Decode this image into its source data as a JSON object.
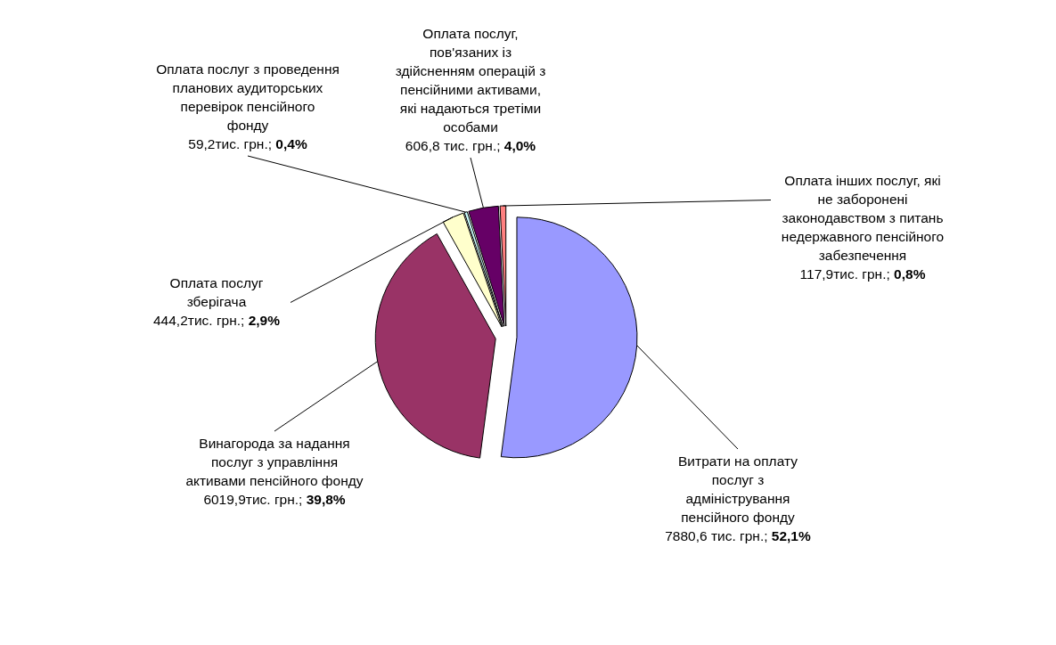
{
  "chart_data": {
    "type": "pie",
    "categories": [
      "Витрати на оплату послуг з адміністрування пенсійного фонду",
      "Винагорода за надання послуг з управління активами пенсійного фонду",
      "Оплата послуг зберігача",
      "Оплата послуг з проведення планових аудиторських перевірок пенсійного фонду",
      "Оплата послуг, пов'язаних із здійсненням операцій з пенсійними активами, які надаються третіми особами",
      "Оплата інших послуг, які не заборонені законодавством з питань недержавного пенсійного забезпечення"
    ],
    "values": [
      7880.6,
      6019.9,
      444.2,
      59.2,
      606.8,
      117.9
    ],
    "value_labels": [
      "7880,6 тис. грн.; 52,1%",
      "6019,9тис. грн.; 39,8%",
      "444,2тис. грн.; 2,9%",
      "59,2тис. грн.; 0,4%",
      "606,8 тис. грн.; 4,0%",
      "117,9тис. грн.; 0,8%"
    ],
    "colors": [
      "#9999ff",
      "#993366",
      "#ffffcc",
      "#ccffff",
      "#660066",
      "#ff8080"
    ]
  }
}
